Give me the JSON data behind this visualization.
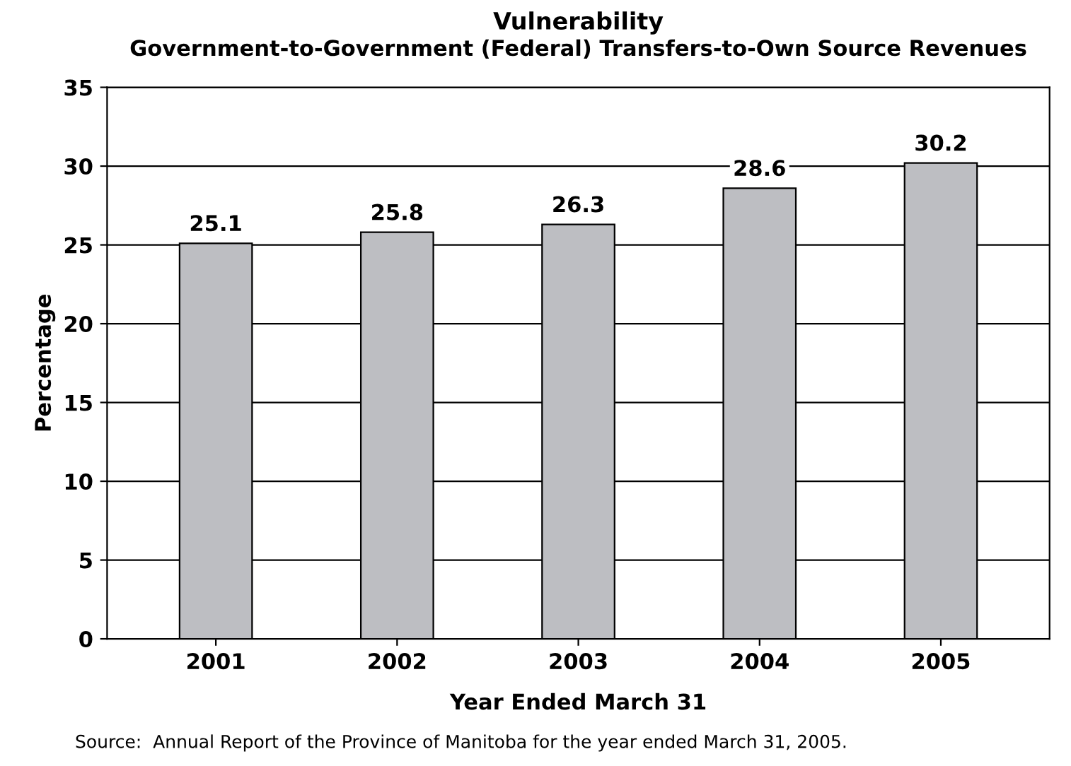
{
  "chart_data": {
    "type": "bar",
    "title": "Vulnerability",
    "subtitle": "Government-to-Government (Federal) Transfers-to-Own Source Revenues",
    "xlabel": "Year Ended March 31",
    "ylabel": "Percentage",
    "categories": [
      "2001",
      "2002",
      "2003",
      "2004",
      "2005"
    ],
    "values": [
      25.1,
      25.8,
      26.3,
      28.6,
      30.2
    ],
    "color": "#bdbec2",
    "ylim": [
      0,
      35
    ],
    "yticks": [
      0,
      5,
      10,
      15,
      20,
      25,
      30,
      35
    ],
    "grid": "y",
    "data_labels": true,
    "annotations": [
      "Source:  Annual Report of the Province of Manitoba for the year ended March 31, 2005."
    ]
  }
}
